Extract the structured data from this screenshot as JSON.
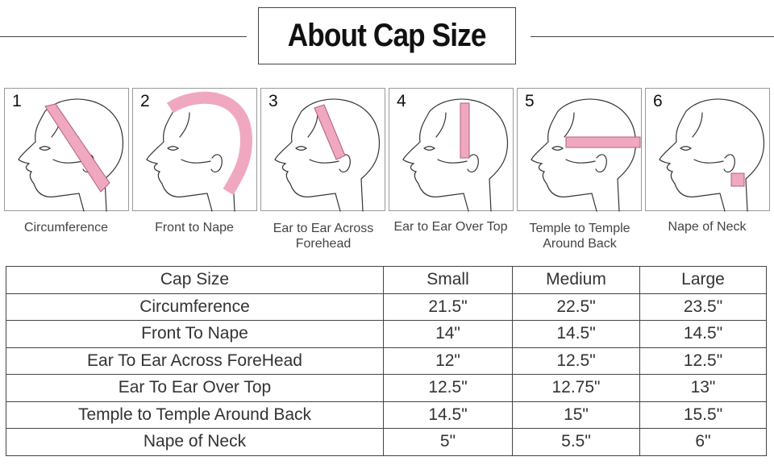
{
  "title": "About Cap Size",
  "colors": {
    "tape": "#f0a8c0",
    "tape_edge": "#b0607a"
  },
  "panels": [
    {
      "number": "1",
      "label": "Circumference"
    },
    {
      "number": "2",
      "label": "Front to Nape"
    },
    {
      "number": "3",
      "label": "Ear to Ear Across Forehead"
    },
    {
      "number": "4",
      "label": "Ear to Ear Over Top"
    },
    {
      "number": "5",
      "label": "Temple to Temple Around Back"
    },
    {
      "number": "6",
      "label": "Nape of Neck"
    }
  ],
  "table": {
    "headers": [
      "Cap Size",
      "Small",
      "Medium",
      "Large"
    ],
    "rows": [
      [
        "Circumference",
        "21.5\"",
        "22.5\"",
        "23.5\""
      ],
      [
        "Front To Nape",
        "14\"",
        "14.5\"",
        "14.5\""
      ],
      [
        "Ear To Ear Across ForeHead",
        "12\"",
        "12.5\"",
        "12.5\""
      ],
      [
        "Ear To Ear Over Top",
        "12.5\"",
        "12.75\"",
        "13\""
      ],
      [
        "Temple to Temple Around Back",
        "14.5\"",
        "15\"",
        "15.5\""
      ],
      [
        "Nape of Neck",
        "5\"",
        "5.5\"",
        "6\""
      ]
    ]
  }
}
